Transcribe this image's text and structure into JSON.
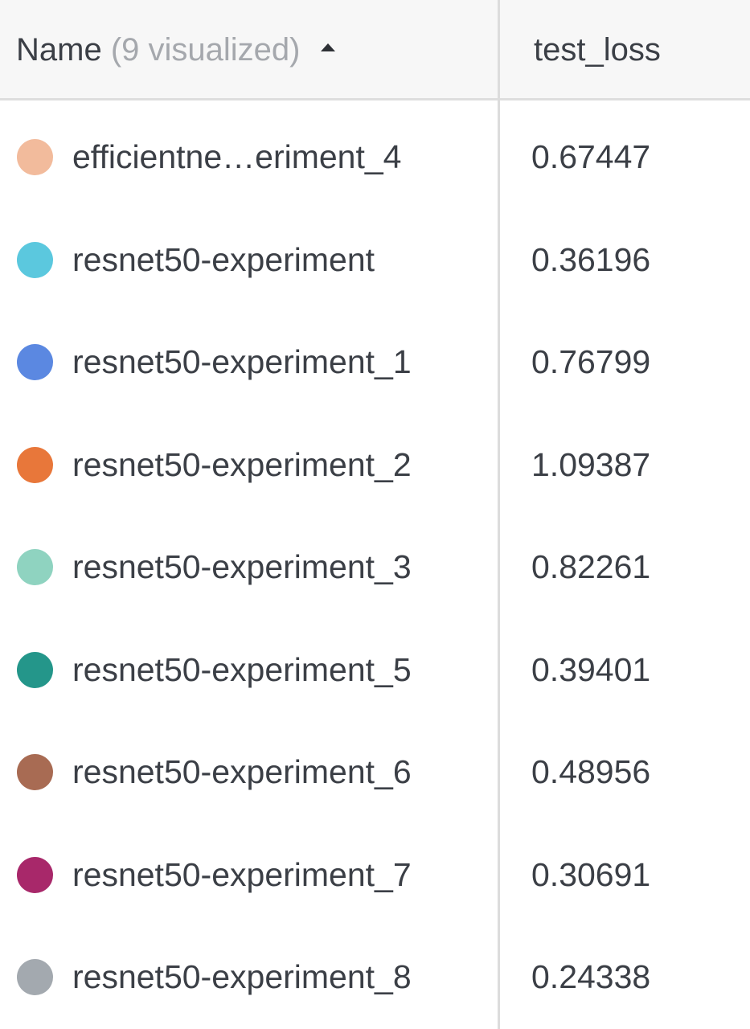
{
  "header": {
    "name_label": "Name",
    "visualized_label": "(9 visualized)",
    "sort_icon": "sort-ascending-icon",
    "metric_label": "test_loss"
  },
  "rows": [
    {
      "name": "efficientne…eriment_4",
      "value": "0.67447",
      "color": "#f2bb9c"
    },
    {
      "name": "resnet50-experiment",
      "value": "0.36196",
      "color": "#5bc8de"
    },
    {
      "name": "resnet50-experiment_1",
      "value": "0.76799",
      "color": "#5b88e1"
    },
    {
      "name": "resnet50-experiment_2",
      "value": "1.09387",
      "color": "#e8773a"
    },
    {
      "name": "resnet50-experiment_3",
      "value": "0.82261",
      "color": "#8fd3c0"
    },
    {
      "name": "resnet50-experiment_5",
      "value": "0.39401",
      "color": "#24968a"
    },
    {
      "name": "resnet50-experiment_6",
      "value": "0.48956",
      "color": "#a86b53"
    },
    {
      "name": "resnet50-experiment_7",
      "value": "0.30691",
      "color": "#a8286a"
    },
    {
      "name": "resnet50-experiment_8",
      "value": "0.24338",
      "color": "#a3a9af"
    }
  ]
}
